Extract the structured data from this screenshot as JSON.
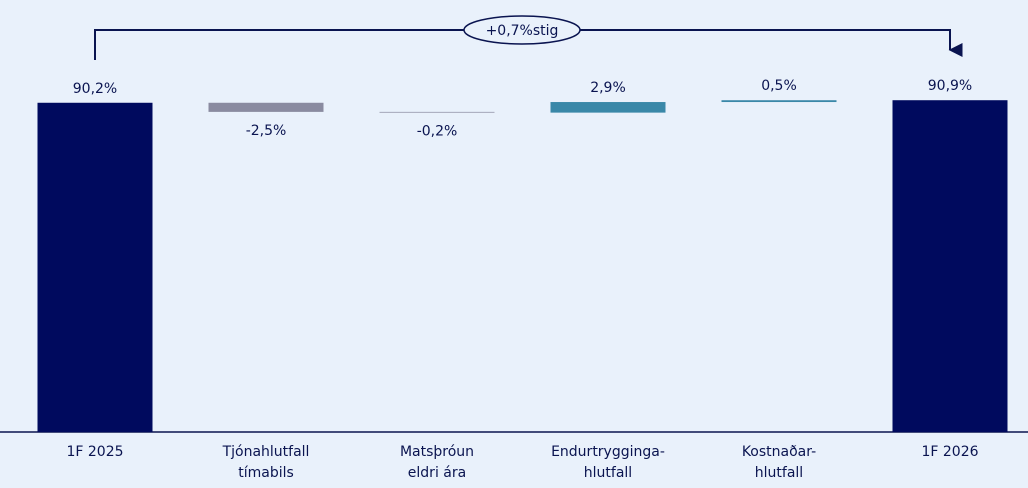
{
  "chart_data": {
    "type": "waterfall",
    "annotation": "+0,7%stig",
    "categories": [
      [
        "1F  2025"
      ],
      [
        "Tjónahlutfall",
        "tímabils"
      ],
      [
        "Matsþróun",
        "eldri ára"
      ],
      [
        "Endurtrygginga-",
        "hlutfall"
      ],
      [
        "Kostnaðar-",
        "hlutfall"
      ],
      [
        "1F 2026"
      ]
    ],
    "measure": [
      "total",
      "relative",
      "relative",
      "relative",
      "relative",
      "total"
    ],
    "values": [
      90.2,
      -2.5,
      -0.2,
      2.9,
      0.5,
      90.9
    ],
    "value_labels": [
      "90,2%",
      "-2,5%",
      "-0,2%",
      "2,9%",
      "0,5%",
      "90,9%"
    ],
    "colors": [
      "#000a5e",
      "#8a8ba0",
      "#8a8ba0",
      "#3a88a8",
      "#3a88a8",
      "#000a5e"
    ],
    "ylim": [
      0,
      100
    ]
  }
}
